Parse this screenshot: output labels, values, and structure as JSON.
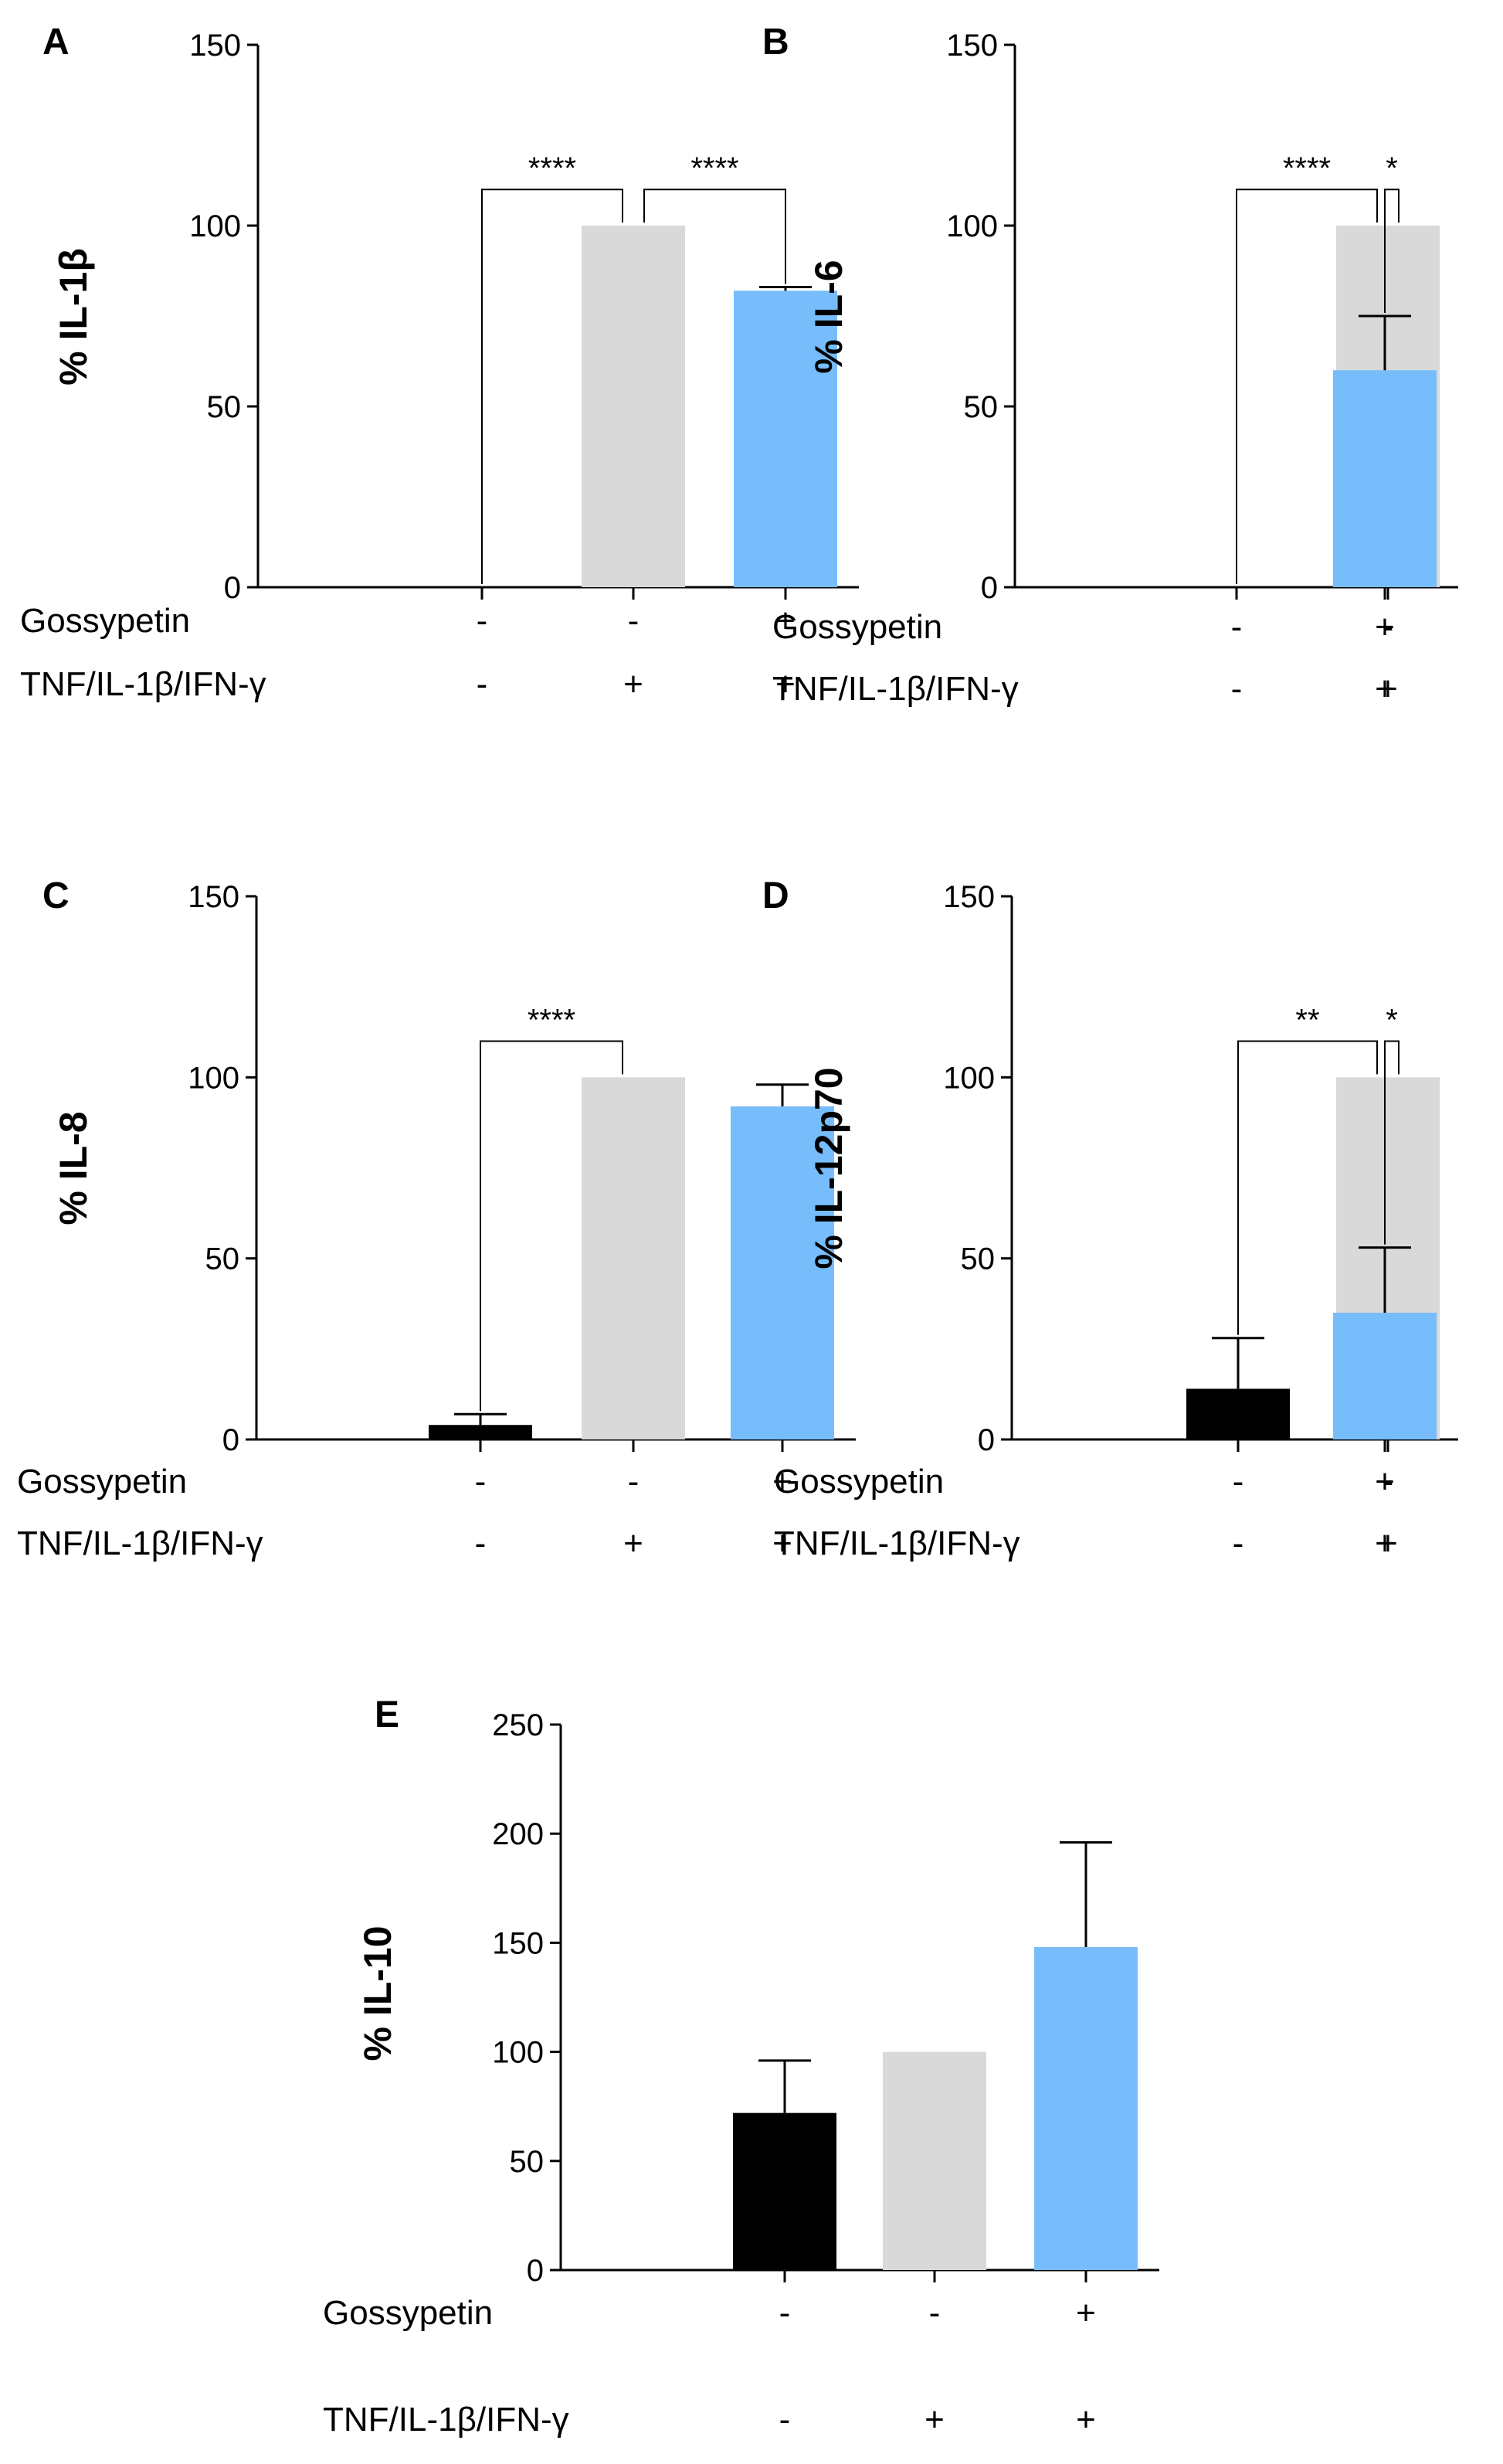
{
  "colors": {
    "minus_minus": "#000000",
    "minus_plus": "#d9d9d9",
    "plus_plus": "#77bdfb"
  },
  "condition_labels": {
    "gossypetin": "Gossypetin",
    "stimulus": "TNF/IL-1β/IFN-γ"
  },
  "chart_data": [
    {
      "panel": "A",
      "type": "bar",
      "ylabel": "% IL-1β",
      "ylim": [
        0,
        150
      ],
      "yticks": [
        0,
        50,
        100,
        150
      ],
      "gossypetin": [
        "-",
        "-",
        "+"
      ],
      "stimulus": [
        "-",
        "+",
        "+"
      ],
      "values": [
        0,
        100,
        82
      ],
      "errors": [
        0,
        0,
        1
      ],
      "significance": [
        {
          "from": 0,
          "to": 1,
          "label": "****"
        },
        {
          "from": 1,
          "to": 2,
          "label": "****"
        }
      ]
    },
    {
      "panel": "B",
      "type": "bar",
      "ylabel": "% IL-6",
      "ylim": [
        0,
        150
      ],
      "yticks": [
        0,
        50,
        100,
        150
      ],
      "gossypetin": [
        "-",
        "-",
        "+"
      ],
      "stimulus": [
        "-",
        "+",
        "+"
      ],
      "values": [
        0,
        100,
        60
      ],
      "errors": [
        0,
        0,
        15
      ],
      "significance": [
        {
          "from": 0,
          "to": 1,
          "label": "****"
        },
        {
          "from": 1,
          "to": 2,
          "label": "*"
        }
      ]
    },
    {
      "panel": "C",
      "type": "bar",
      "ylabel": "% IL-8",
      "ylim": [
        0,
        150
      ],
      "yticks": [
        0,
        50,
        100,
        150
      ],
      "gossypetin": [
        "-",
        "-",
        "+"
      ],
      "stimulus": [
        "-",
        "+",
        "+"
      ],
      "values": [
        4,
        100,
        92
      ],
      "errors": [
        3,
        0,
        6
      ],
      "significance": [
        {
          "from": 0,
          "to": 1,
          "label": "****"
        }
      ]
    },
    {
      "panel": "D",
      "type": "bar",
      "ylabel": "% IL-12p70",
      "ylim": [
        0,
        150
      ],
      "yticks": [
        0,
        50,
        100,
        150
      ],
      "gossypetin": [
        "-",
        "-",
        "+"
      ],
      "stimulus": [
        "-",
        "+",
        "+"
      ],
      "values": [
        14,
        100,
        35
      ],
      "errors": [
        14,
        0,
        18
      ],
      "significance": [
        {
          "from": 0,
          "to": 1,
          "label": "**"
        },
        {
          "from": 1,
          "to": 2,
          "label": "*"
        }
      ]
    },
    {
      "panel": "E",
      "type": "bar",
      "ylabel": "% IL-10",
      "ylim": [
        0,
        250
      ],
      "yticks": [
        0,
        50,
        100,
        150,
        200,
        250
      ],
      "gossypetin": [
        "-",
        "-",
        "+"
      ],
      "stimulus": [
        "-",
        "+",
        "+"
      ],
      "values": [
        72,
        100,
        148
      ],
      "errors": [
        24,
        0,
        48
      ],
      "significance": []
    }
  ]
}
